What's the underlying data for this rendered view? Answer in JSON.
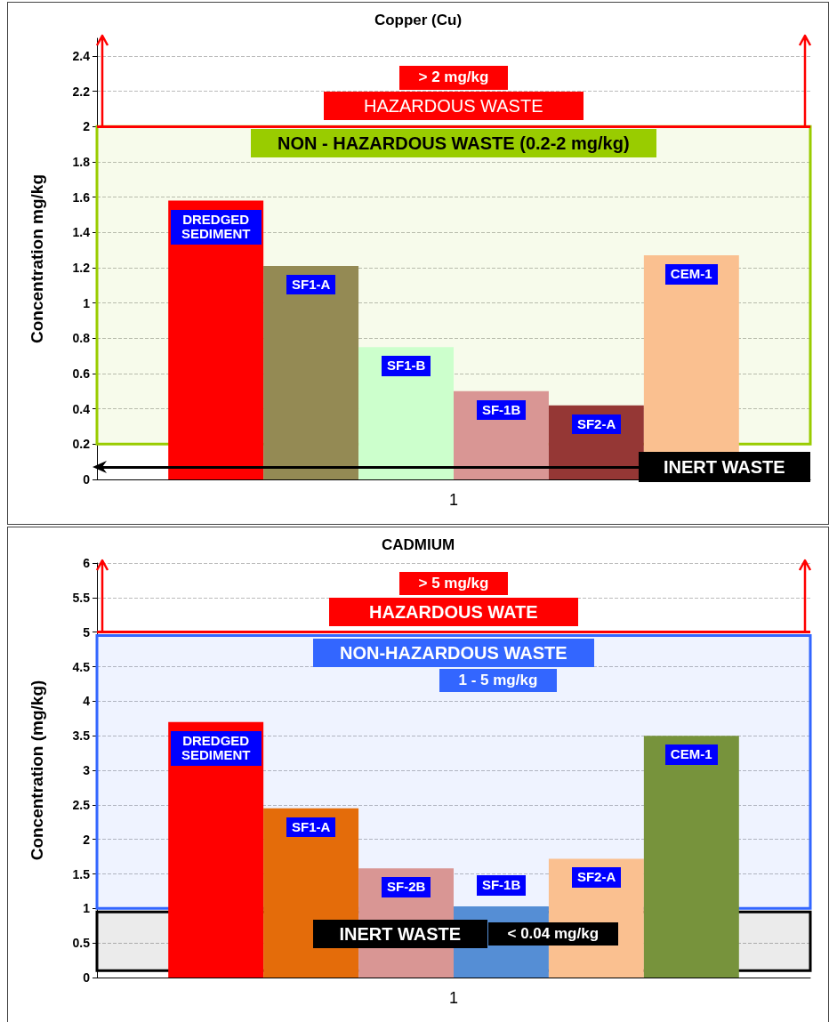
{
  "chart_data": [
    {
      "type": "bar",
      "title": "Copper (Cu)",
      "ylabel": "Concentration mg/kg",
      "categories": [
        "1"
      ],
      "series": [
        {
          "name": "DREDGED SEDIMENT",
          "color": "#ff0000",
          "values": [
            1.58
          ]
        },
        {
          "name": "SF1-A",
          "color": "#948a54",
          "values": [
            1.21
          ]
        },
        {
          "name": "SF1-B",
          "color": "#ccffcc",
          "values": [
            0.75
          ]
        },
        {
          "name": "SF-1B",
          "color": "#d99694",
          "values": [
            0.5
          ]
        },
        {
          "name": "SF2-A",
          "color": "#953735",
          "values": [
            0.42
          ]
        },
        {
          "name": "CEM-1",
          "color": "#fac090",
          "values": [
            1.27
          ]
        }
      ],
      "ylim": [
        0,
        2.5
      ],
      "yticks": [
        0,
        0.2,
        0.4,
        0.6,
        0.8,
        1,
        1.2,
        1.4,
        1.6,
        1.8,
        2,
        2.2,
        2.4
      ],
      "grid": "y",
      "ref_lines": [
        {
          "axis": "y",
          "value": 2,
          "label": "HAZARDOUS WASTE",
          "color": "#ff0000"
        },
        {
          "axis": "y",
          "value": 0.07,
          "label": "INERT WASTE",
          "color": "#000000"
        }
      ],
      "bands": [
        {
          "axis": "y",
          "from": 0.2,
          "to": 2,
          "label": "NON - HAZARDOUS WASTE   (0.2-2 mg/kg)",
          "color": "#99cc00"
        }
      ],
      "annotations": [
        "> 2 mg/kg"
      ]
    },
    {
      "type": "bar",
      "title": "CADMIUM",
      "ylabel": "Concentration (mg/kg)",
      "categories": [
        "1"
      ],
      "series": [
        {
          "name": "DREDGED SEDIMENT",
          "color": "#ff0000",
          "values": [
            3.7
          ]
        },
        {
          "name": "SF1-A",
          "color": "#e46c0a",
          "values": [
            2.45
          ]
        },
        {
          "name": "SF-2B",
          "color": "#d99694",
          "values": [
            1.58
          ]
        },
        {
          "name": "SF-1B",
          "color": "#558ed5",
          "values": [
            1.03
          ]
        },
        {
          "name": "SF2-A",
          "color": "#fac090",
          "values": [
            1.72
          ]
        },
        {
          "name": "CEM-1",
          "color": "#77933c",
          "values": [
            3.5
          ]
        }
      ],
      "ylim": [
        0,
        6
      ],
      "yticks": [
        0,
        0.5,
        1,
        1.5,
        2,
        2.5,
        3,
        3.5,
        4,
        4.5,
        5,
        5.5,
        6
      ],
      "grid": "y",
      "ref_lines": [
        {
          "axis": "y",
          "value": 5,
          "label": "HAZARDOUS WATE",
          "color": "#ff0000"
        }
      ],
      "bands": [
        {
          "axis": "y",
          "from": 1,
          "to": 4.95,
          "label": "NON-HAZARDOUS WASTE",
          "color": "#3366ff"
        },
        {
          "axis": "y",
          "from": 0.1,
          "to": 0.95,
          "label": "INERT WASTE",
          "color": "#000000"
        }
      ],
      "annotations": [
        "> 5 mg/kg",
        "1 - 5 mg/kg",
        "< 0.04 mg/kg"
      ]
    }
  ]
}
